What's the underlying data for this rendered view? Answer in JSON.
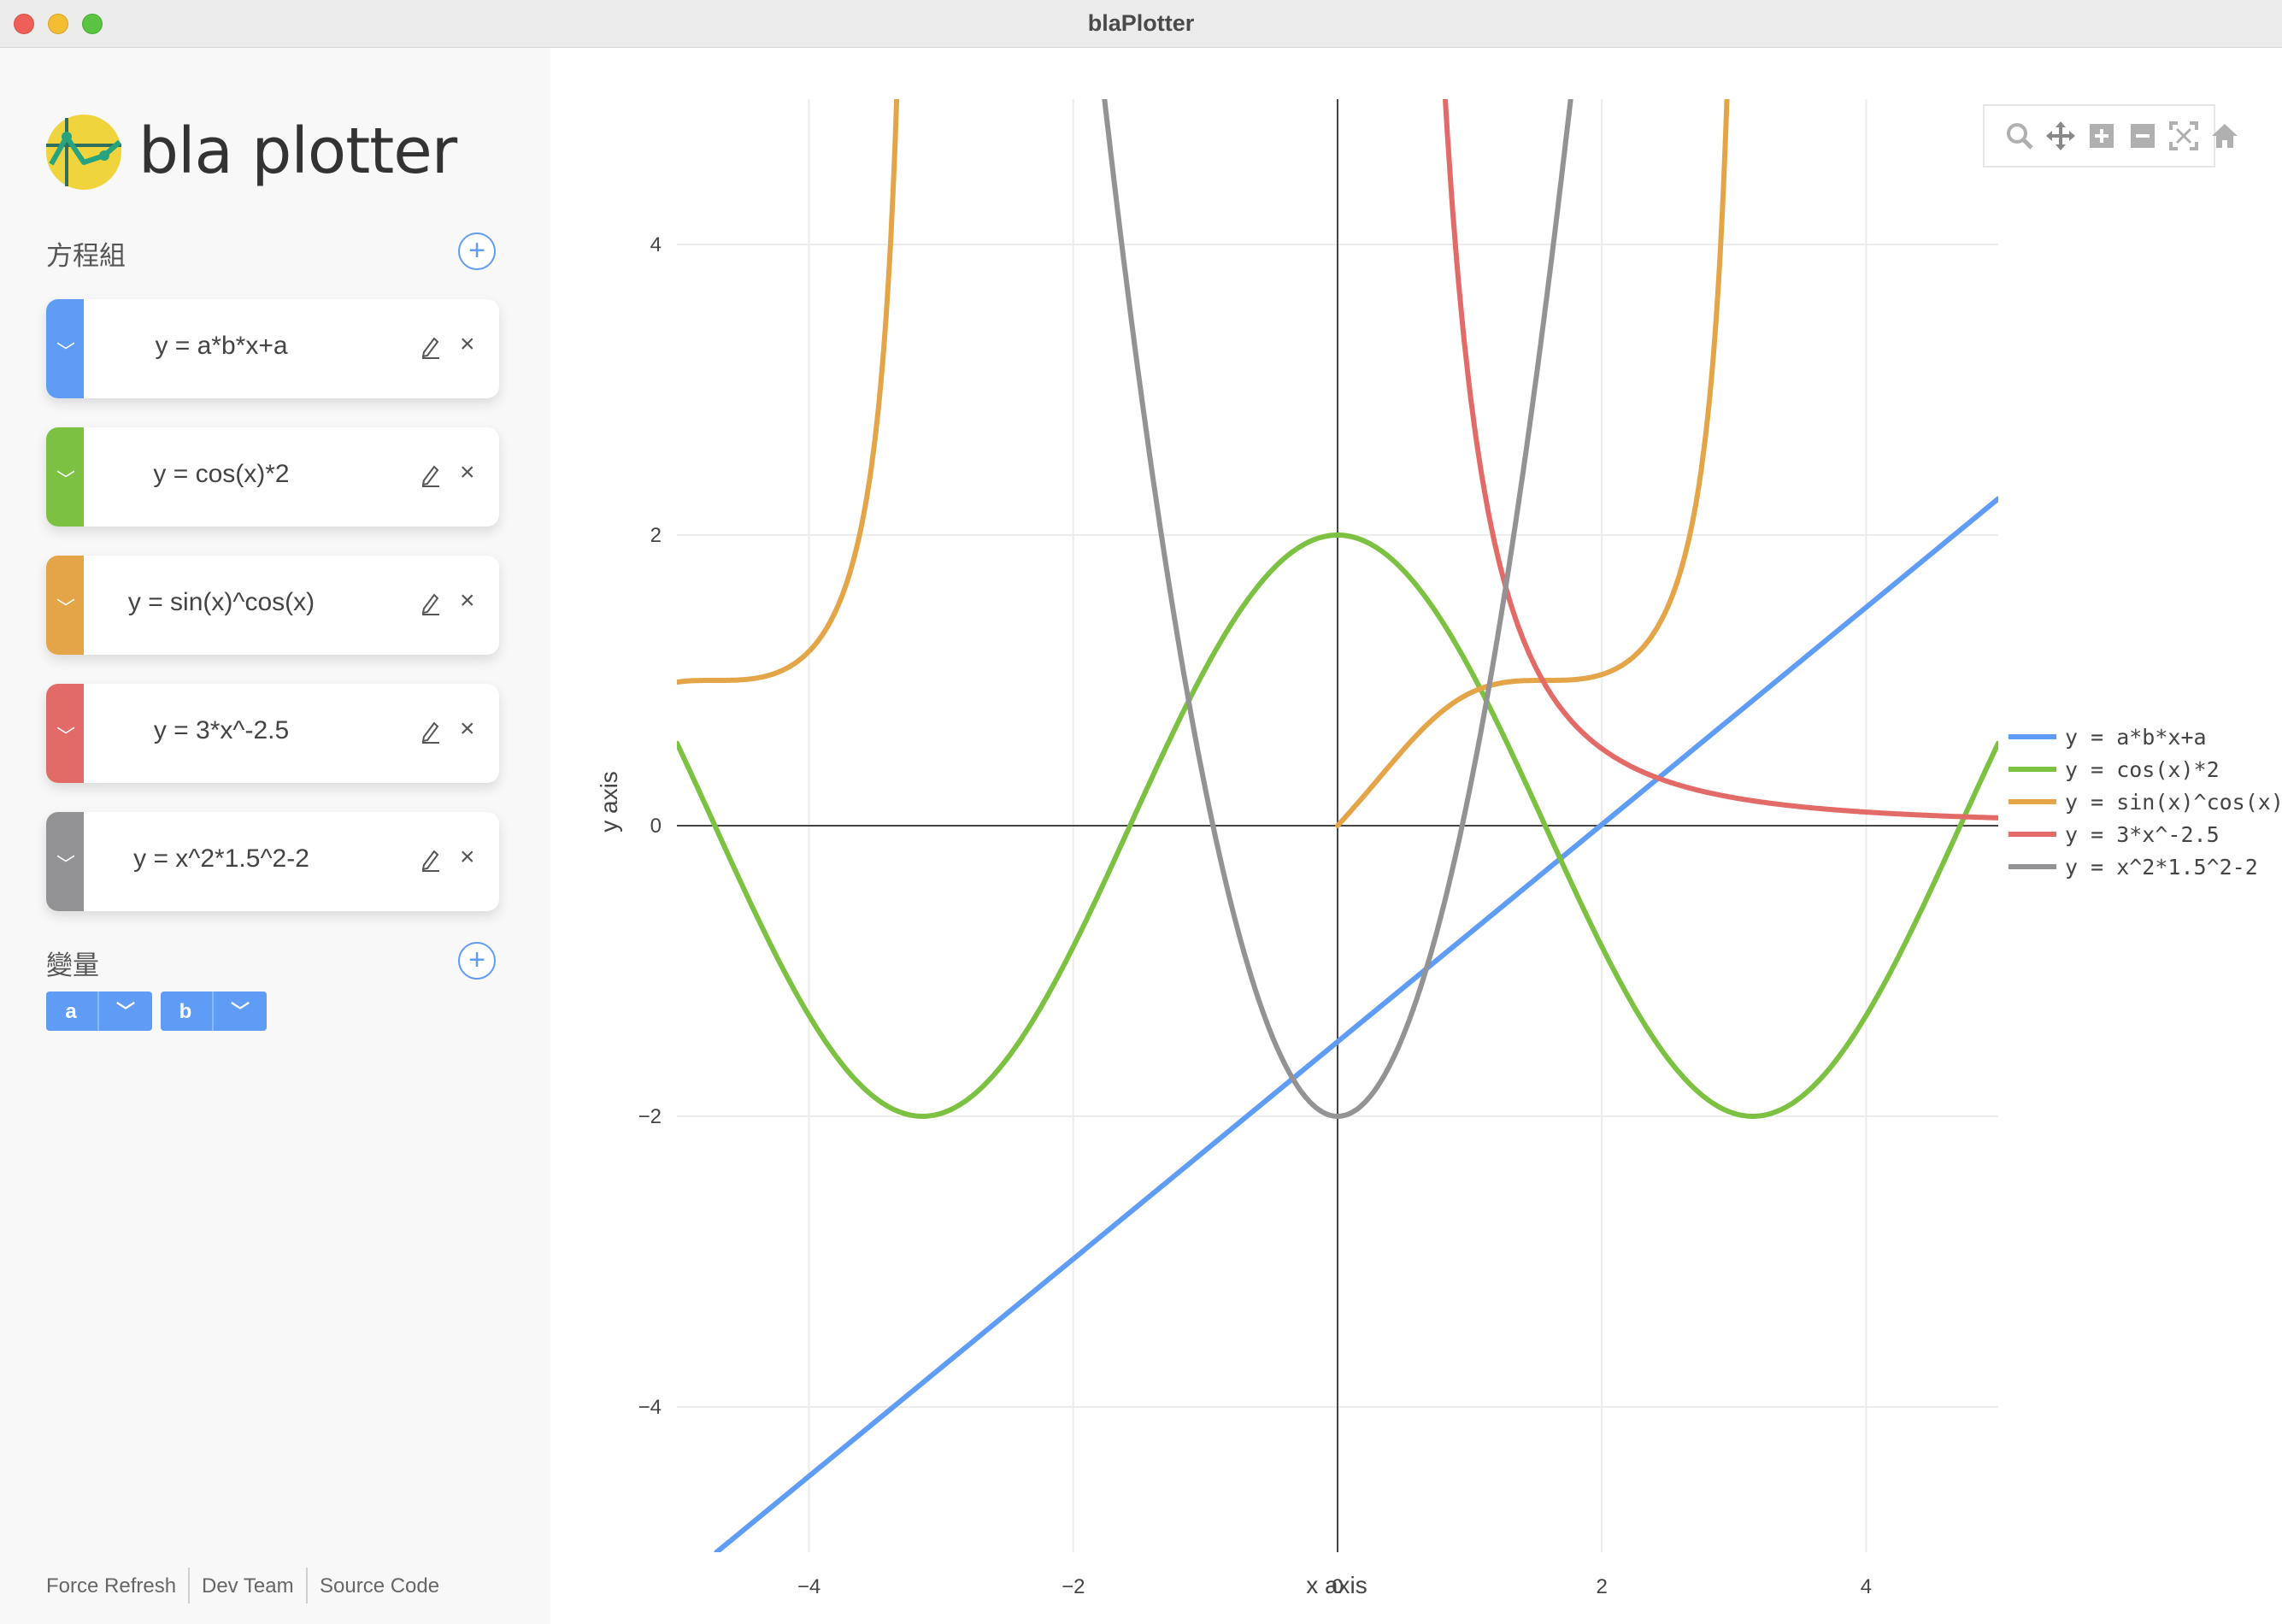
{
  "window": {
    "title": "blaPlotter"
  },
  "sidebar": {
    "logo_text": "bla plotter",
    "equations_title": "方程組",
    "variables_title": "變量",
    "equations": [
      {
        "label": "y = a*b*x+a",
        "color": "#5e9cf5"
      },
      {
        "label": "y = cos(x)*2",
        "color": "#7cc142"
      },
      {
        "label": "y = sin(x)^cos(x)",
        "color": "#e3a548"
      },
      {
        "label": "y = 3*x^-2.5",
        "color": "#e26b67"
      },
      {
        "label": "y = x^2*1.5^2-2",
        "color": "#939396"
      }
    ],
    "variables": [
      {
        "label": "a"
      },
      {
        "label": "b"
      }
    ],
    "footer": {
      "force_refresh": "Force Refresh",
      "dev_team": "Dev Team",
      "source_code": "Source Code"
    }
  },
  "modebar": {
    "icons": [
      "zoom-icon",
      "pan-icon",
      "zoom-in-icon",
      "zoom-out-icon",
      "autoscale-icon",
      "reset-axes-home-icon"
    ]
  },
  "chart_data": {
    "type": "line",
    "xlabel": "x axis",
    "ylabel": "y axis",
    "xlim": [
      -5,
      5
    ],
    "ylim": [
      -5,
      5
    ],
    "xticks": [
      -4,
      -2,
      0,
      2,
      4
    ],
    "yticks": [
      -4,
      -2,
      0,
      2,
      4
    ],
    "x_tick_labels": [
      "−4",
      "−2",
      "0",
      "2",
      "4"
    ],
    "y_tick_labels": [
      "−4",
      "−2",
      "0",
      "2",
      "4"
    ],
    "grid": true,
    "legend_position": "right",
    "series": [
      {
        "name": "y = a*b*x+a",
        "color": "#5e9cf5",
        "expr": "linear",
        "x": [
          -4.7,
          5
        ],
        "y": [
          -5,
          2.25
        ]
      },
      {
        "name": "y = cos(x)*2",
        "color": "#7cc142",
        "expr": "cos",
        "x_range": [
          -5,
          5
        ]
      },
      {
        "name": "y = sin(x)^cos(x)",
        "color": "#e3a548",
        "expr": "sinpowcos",
        "x_range": [
          -5,
          5
        ]
      },
      {
        "name": "y = 3*x^-2.5",
        "color": "#e26b67",
        "expr": "power",
        "x_range": [
          0.8,
          5
        ]
      },
      {
        "name": "y = x^2*1.5^2-2",
        "color": "#939396",
        "expr": "parabola",
        "x_range": [
          -1.8,
          1.8
        ]
      }
    ]
  }
}
